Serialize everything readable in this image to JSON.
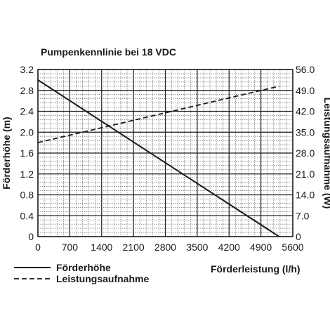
{
  "chart_data": {
    "type": "line",
    "title": "Pumpenkennlinie bei 18 VDC",
    "xlabel": "Förderleistung (l/h)",
    "ylabel": "Förderhöhe (m)",
    "y2label": "Leistungsaufnahme (W)",
    "xlim": [
      0,
      5600
    ],
    "ylim": [
      0,
      3.2
    ],
    "y2lim": [
      0,
      56
    ],
    "x_ticks": [
      "0",
      "700",
      "1400",
      "2100",
      "2800",
      "3500",
      "4200",
      "4900",
      "5600"
    ],
    "y_ticks": [
      "0",
      "0.4",
      "0.8",
      "1.2",
      "1.6",
      "2.0",
      "2.4",
      "2.8",
      "3.2"
    ],
    "y2_ticks": [
      "0",
      "7.0",
      "14.0",
      "21.0",
      "28.0",
      "35.0",
      "42.0",
      "49.0",
      "56.0"
    ],
    "grid": true,
    "legend_position": "bottom-left",
    "series": [
      {
        "name": "Förderhöhe",
        "axis": "left",
        "style": "solid",
        "x": [
          0,
          5300
        ],
        "y": [
          3.0,
          0
        ]
      },
      {
        "name": "Leistungsaufnahme",
        "axis": "right",
        "style": "dashed",
        "x": [
          0,
          5300
        ],
        "y": [
          31.5,
          50.4
        ]
      }
    ]
  }
}
